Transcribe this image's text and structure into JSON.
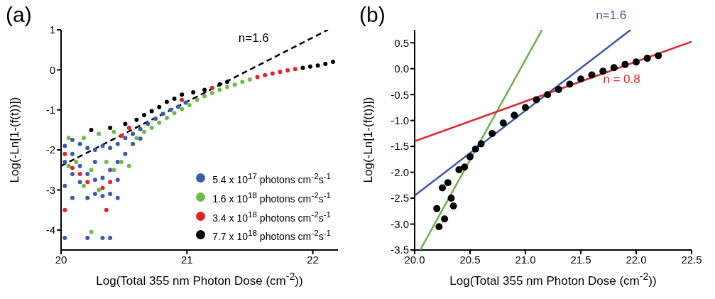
{
  "chart_data": [
    {
      "type": "scatter",
      "title": "(a)",
      "xlabel": "Log(Total 355 nm Photon Dose (cm$^{-2}$))",
      "ylabel": "Log(-Ln[1-(f(t))])",
      "xlim": [
        20,
        22.2
      ],
      "xticks": [
        20,
        21,
        22
      ],
      "ylim": [
        -4.5,
        1
      ],
      "yticks": [
        -4,
        -3,
        -2,
        -1,
        0,
        1
      ],
      "grid": false,
      "legend": "bottom right",
      "series": [
        {
          "name": "5.4 x 10$^{17}$ photons cm$^{-2}$s$^{-1}$",
          "color": "#3a5bab",
          "marker": "circle",
          "x": [
            20.03,
            20.03,
            20.03,
            20.03,
            20.09,
            20.09,
            20.09,
            20.09,
            20.15,
            20.15,
            20.15,
            20.21,
            20.21,
            20.21,
            20.21,
            20.27,
            20.27,
            20.27,
            20.27,
            20.33,
            20.33,
            20.33,
            20.33,
            20.39,
            20.39,
            20.39,
            20.39,
            20.45,
            20.45,
            20.45,
            20.45,
            20.51,
            20.51,
            20.57,
            20.63,
            20.69,
            20.75,
            20.81,
            20.87,
            20.93,
            20.99,
            20.57,
            20.63
          ],
          "values": [
            -1.9,
            -2.3,
            -2.9,
            -4.2,
            -1.75,
            -2.1,
            -2.6,
            -3.2,
            -1.85,
            -2.4,
            -2.8,
            -1.95,
            -2.6,
            -3.2,
            -4.2,
            -2.0,
            -2.3,
            -2.75,
            -3.1,
            -1.9,
            -2.7,
            -3.15,
            -4.2,
            -1.95,
            -2.5,
            -3.1,
            -4.2,
            -1.85,
            -2.3,
            -2.75,
            -3.2,
            -1.7,
            -2.1,
            -1.6,
            -1.48,
            -1.35,
            -1.22,
            -1.1,
            -1.0,
            -0.92,
            -0.82,
            -1.85,
            -1.72
          ]
        },
        {
          "name": "1.6 x 10$^{18}$ photons cm$^{-2}$s$^{-1}$",
          "color": "#6cbd45",
          "marker": "circle",
          "x": [
            20.06,
            20.06,
            20.12,
            20.18,
            20.18,
            20.24,
            20.24,
            20.3,
            20.3,
            20.36,
            20.42,
            20.42,
            20.48,
            20.54,
            20.6,
            20.66,
            20.72,
            20.78,
            20.84,
            20.9,
            20.96,
            21.02,
            21.08,
            21.14,
            21.2,
            21.26,
            21.32,
            21.38,
            21.44,
            21.5
          ],
          "values": [
            -1.7,
            -2.4,
            -2.3,
            -1.7,
            -2.9,
            -2.5,
            -4.05,
            -1.6,
            -3.0,
            -2.3,
            -1.55,
            -2.5,
            -2.3,
            -2.4,
            -1.7,
            -1.55,
            -1.45,
            -1.32,
            -1.2,
            -1.08,
            -0.98,
            -0.88,
            -0.75,
            -0.66,
            -0.58,
            -0.5,
            -0.43,
            -0.37,
            -0.3,
            -0.24
          ]
        },
        {
          "name": "3.4 x 10$^{18}$ photons cm$^{-2}$s$^{-1}$",
          "color": "#e2232b",
          "marker": "circle",
          "x": [
            20.03,
            20.03,
            20.09,
            20.15,
            20.21,
            20.33,
            20.36,
            20.39,
            20.48,
            20.54,
            20.96,
            21.2,
            21.56,
            21.62,
            21.68,
            21.74,
            21.8,
            21.86
          ],
          "values": [
            -2.1,
            -3.5,
            -2.45,
            -2.6,
            -2.8,
            -2.95,
            -3.5,
            -2.8,
            -1.65,
            -1.45,
            -0.75,
            -0.45,
            -0.18,
            -0.13,
            -0.09,
            -0.05,
            -0.01,
            0.02
          ]
        },
        {
          "name": "7.7 x 10$^{18}$ photons cm$^{-2}$s$^{-1}$",
          "color": "#000000",
          "marker": "circle",
          "x": [
            20.24,
            20.39,
            20.51,
            20.6,
            20.66,
            20.72,
            20.78,
            20.84,
            20.9,
            20.96,
            21.05,
            21.14,
            21.26,
            21.32,
            21.92,
            21.98,
            22.04,
            22.1,
            22.16
          ],
          "values": [
            -1.5,
            -1.45,
            -1.35,
            -1.25,
            -1.13,
            -1.03,
            -0.93,
            -0.8,
            -0.72,
            -0.62,
            -0.56,
            -0.5,
            -0.36,
            -0.3,
            0.05,
            0.08,
            0.11,
            0.15,
            0.2
          ]
        },
        {
          "type": "line",
          "name": "n=1.6",
          "color": "#000000",
          "line_style": "dashed",
          "x": [
            20,
            22.12
          ],
          "values": [
            -2.4,
            1.0
          ]
        }
      ]
    },
    {
      "type": "scatter",
      "title": "(b)",
      "xlabel": "Log(Total 355 nm Photon Dose (cm$^{-2}$))",
      "ylabel": "Log(-Ln[1-(f(t))])",
      "xlim": [
        20,
        22.5
      ],
      "xticks": [
        {
          "value": 20,
          "label": "20.0"
        },
        20.5,
        {
          "value": 21,
          "label": "21.0"
        },
        21.5,
        {
          "value": 22,
          "label": "22.0"
        },
        22.5
      ],
      "ylim": [
        -3.5,
        0.75
      ],
      "yticks": [
        -3.5,
        {
          "value": -3,
          "label": "-3.0"
        },
        -2.5,
        {
          "value": -2,
          "label": "-2.0"
        },
        -1.5,
        {
          "value": -1,
          "label": "-1.0"
        },
        -0.5,
        {
          "value": 0,
          "label": "0.0"
        },
        0.5
      ],
      "grid": false,
      "series": [
        {
          "color": "#000000",
          "marker": "circle",
          "x": [
            20.2,
            20.22,
            20.25,
            20.27,
            20.3,
            20.33,
            20.35,
            20.4,
            20.45,
            20.5,
            20.55,
            20.6,
            20.7,
            20.8,
            20.9,
            21.0,
            21.1,
            21.2,
            21.3,
            21.4,
            21.5,
            21.6,
            21.7,
            21.8,
            21.9,
            22.0,
            22.1,
            22.2
          ],
          "values": [
            -2.7,
            -3.05,
            -2.3,
            -2.9,
            -2.2,
            -2.5,
            -2.65,
            -1.95,
            -1.9,
            -1.7,
            -1.55,
            -1.45,
            -1.25,
            -1.05,
            -0.9,
            -0.75,
            -0.6,
            -0.5,
            -0.4,
            -0.3,
            -0.2,
            -0.12,
            -0.05,
            0.02,
            0.08,
            0.13,
            0.2,
            0.25
          ]
        },
        {
          "type": "line",
          "color": "#6ab04c",
          "line_style": "solid",
          "x": [
            20.05,
            21.15
          ],
          "values": [
            -3.5,
            0.75
          ]
        },
        {
          "type": "line",
          "name": "n=1.6",
          "color": "#3c58a8",
          "line_style": "solid",
          "x": [
            20.0,
            21.95
          ],
          "values": [
            -2.45,
            0.75
          ]
        },
        {
          "type": "line",
          "name": "n = 0.8",
          "color": "#e3242b",
          "line_style": "solid",
          "x": [
            20.0,
            22.5
          ],
          "values": [
            -1.4,
            0.52
          ]
        }
      ]
    }
  ]
}
